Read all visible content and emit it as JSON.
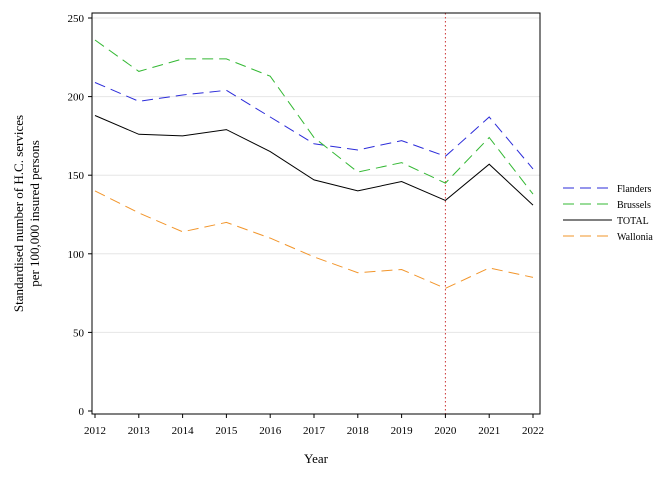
{
  "chart_data": {
    "type": "line",
    "xlabel": "Year",
    "ylabel_lines": [
      "Standardised number of H.C. services",
      "per 100,000 insured persons"
    ],
    "x": [
      2012,
      2013,
      2014,
      2015,
      2016,
      2017,
      2018,
      2019,
      2020,
      2021,
      2022
    ],
    "xlim": [
      2012,
      2022
    ],
    "ylim": [
      0,
      250
    ],
    "yticks": [
      0,
      50,
      100,
      150,
      200,
      250
    ],
    "grid": "horizontal",
    "legend_position": "right",
    "reference_line": {
      "x": 2020,
      "color": "#cc3333",
      "style": "dotted"
    },
    "series": [
      {
        "name": "Flanders",
        "color": "#2b2bd9",
        "dash": "dashed",
        "values": [
          209,
          197,
          201,
          204,
          187,
          170,
          166,
          172,
          162,
          187,
          154
        ]
      },
      {
        "name": "Brussels",
        "color": "#33b833",
        "dash": "dashed",
        "values": [
          236,
          216,
          224,
          224,
          213,
          174,
          152,
          158,
          145,
          174,
          138
        ]
      },
      {
        "name": "TOTAL",
        "color": "#000000",
        "dash": "solid",
        "values": [
          188,
          176,
          175,
          179,
          165,
          147,
          140,
          146,
          134,
          157,
          131
        ]
      },
      {
        "name": "Wallonia",
        "color": "#f2952a",
        "dash": "dashed",
        "values": [
          140,
          126,
          114,
          120,
          110,
          98,
          88,
          90,
          78,
          91,
          85
        ]
      }
    ]
  }
}
